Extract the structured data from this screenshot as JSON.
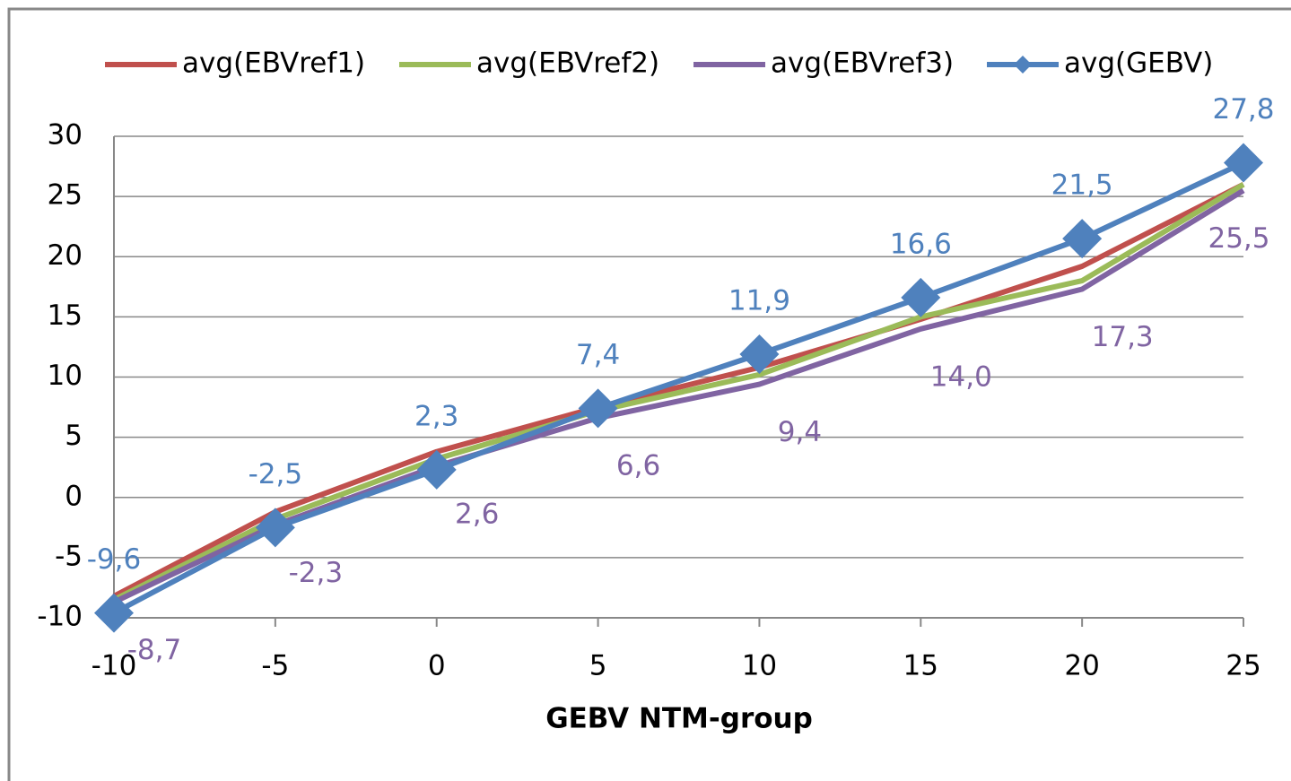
{
  "chart_data": {
    "type": "line",
    "x_label": "GEBV NTM-group",
    "x": [
      -10,
      -5,
      0,
      5,
      10,
      15,
      20,
      25
    ],
    "xlim": [
      -10,
      25
    ],
    "xticks": [
      -10,
      -5,
      0,
      5,
      10,
      15,
      20,
      25
    ],
    "ylim": [
      -10,
      30
    ],
    "yticks": [
      -10,
      -5,
      0,
      5,
      10,
      15,
      20,
      25,
      30
    ],
    "grid": true,
    "legend": "top",
    "series": [
      {
        "name": "avg(EBVref1)",
        "color": "#c0504d",
        "values": [
          -8.2,
          -1.2,
          3.8,
          7.5,
          10.8,
          14.8,
          19.2,
          26.0
        ]
      },
      {
        "name": "avg(EBVref2)",
        "color": "#9bbb59",
        "values": [
          -8.5,
          -1.8,
          3.2,
          7.2,
          10.2,
          15.0,
          18.0,
          26.0
        ]
      },
      {
        "name": "avg(EBVref3)",
        "color": "#8064a2",
        "values": [
          -8.7,
          -2.3,
          2.6,
          6.6,
          9.4,
          14.0,
          17.3,
          25.5
        ],
        "value_labels": [
          "-8,7",
          "-2,3",
          "2,6",
          "6,6",
          "9,4",
          "14,0",
          "17,3",
          "25,5"
        ],
        "label_position": "below"
      },
      {
        "name": "avg(GEBV)",
        "color": "#4f81bd",
        "marker": "diamond",
        "values": [
          -9.6,
          -2.5,
          2.3,
          7.4,
          11.9,
          16.6,
          21.5,
          27.8
        ],
        "value_labels": [
          "-9,6",
          "-2,5",
          "2,3",
          "7,4",
          "11,9",
          "16,6",
          "21,5",
          "27,8"
        ],
        "label_position": "above"
      }
    ]
  }
}
